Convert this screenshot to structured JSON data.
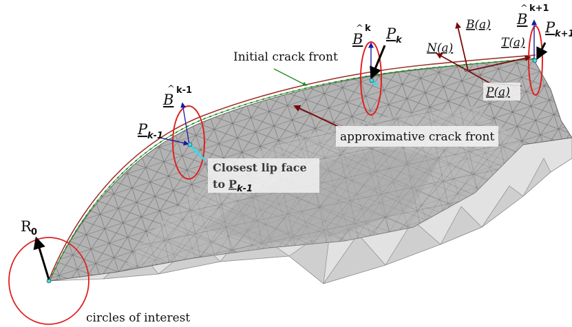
{
  "labels": {
    "initial_crack_front": "Initial crack front",
    "approx_crack_front": "approximative crack front",
    "closest_lip_face_line1": "Closest lip face",
    "closest_lip_face_line2": "to",
    "closest_lip_face_sym": "P",
    "closest_lip_face_sub": "k-1",
    "circles_of_interest": "circles of interest",
    "r0": "R",
    "r0_sub": "0",
    "b_hat": "B",
    "b_k_sup": "k",
    "b_km1_sup": "k-1",
    "b_kp1_sup": "k+1",
    "p": "P",
    "p_k_sub": "k",
    "p_km1_sub": "k-1",
    "p_kp1_sub": "k+1",
    "b_a": "B(a)",
    "n_a": "N(a)",
    "t_a": "T(a)",
    "p_a": "P(a)"
  },
  "colors": {
    "mesh_light": "#d4d4d4",
    "mesh_mid": "#b8b8b8",
    "mesh_dark": "#9a9a9a",
    "mesh_lines": "#6a6a6a",
    "initial_front_green": "#1e8c1e",
    "approx_front_red": "#a03030",
    "circle_red": "#e02020",
    "b_hat_blue": "#1a1aa0",
    "frenet_darkred": "#7a0a0a",
    "point_cyan": "#33ddee",
    "arrow_black": "#000000"
  }
}
